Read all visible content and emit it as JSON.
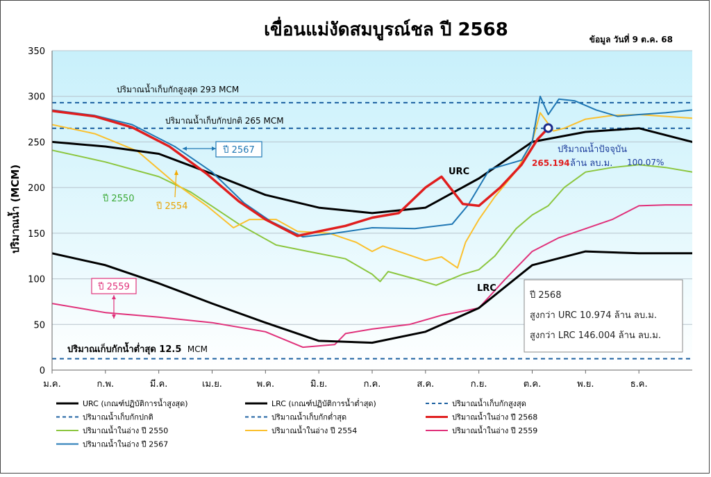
{
  "chart_data": {
    "type": "line",
    "title": "เขื่อนแม่งัดสมบูรณ์ชล ปี 2568",
    "subtitle": "ข้อมูล วันที่  9 ต.ค. 68",
    "ylabel": "ปริมาณน้ำ (MCM)",
    "xlabel": "",
    "ylim": [
      0,
      350
    ],
    "yticks": [
      0,
      50,
      100,
      150,
      200,
      250,
      300,
      350
    ],
    "xlim": [
      0,
      12
    ],
    "months": [
      "ม.ค.",
      "ก.พ.",
      "มี.ค.",
      "เม.ย.",
      "พ.ค.",
      "มิ.ย.",
      "ก.ค.",
      "ส.ค.",
      "ก.ย.",
      "ต.ค.",
      "พ.ย.",
      "ธ.ค."
    ],
    "grid": true,
    "legend_position": "bottom",
    "series": [
      {
        "key": "urc",
        "name": "URC (เกณฑ์ปฏิบัติการน้ำสูงสุด)",
        "color": "#000000",
        "width": 3,
        "dash": "",
        "points": [
          [
            0,
            250
          ],
          [
            1,
            245
          ],
          [
            2,
            237
          ],
          [
            3,
            215
          ],
          [
            4,
            192
          ],
          [
            5,
            178
          ],
          [
            6,
            172
          ],
          [
            7,
            178
          ],
          [
            8,
            210
          ],
          [
            9,
            250
          ],
          [
            10,
            261
          ],
          [
            11,
            265
          ],
          [
            12,
            250
          ]
        ]
      },
      {
        "key": "lrc",
        "name": "LRC (เกณฑ์ปฏิบัติการน้ำต่ำสุด)",
        "color": "#000000",
        "width": 3,
        "dash": "",
        "points": [
          [
            0,
            128
          ],
          [
            1,
            115
          ],
          [
            2,
            95
          ],
          [
            3,
            73
          ],
          [
            4,
            52
          ],
          [
            5,
            32
          ],
          [
            6,
            30
          ],
          [
            7,
            42
          ],
          [
            8,
            68
          ],
          [
            9,
            115
          ],
          [
            10,
            130
          ],
          [
            11,
            128
          ],
          [
            12,
            128
          ]
        ]
      },
      {
        "key": "y2550",
        "name": "ปริมาณน้ำในอ่าง  ปี 2550",
        "color": "#8cc63f",
        "width": 2,
        "dash": "",
        "points": [
          [
            0,
            241
          ],
          [
            1,
            228
          ],
          [
            2,
            212
          ],
          [
            2.6,
            195
          ],
          [
            3.5,
            160
          ],
          [
            4.2,
            137
          ],
          [
            4.8,
            130
          ],
          [
            5.5,
            122
          ],
          [
            6,
            105
          ],
          [
            6.15,
            97
          ],
          [
            6.3,
            108
          ],
          [
            6.8,
            100
          ],
          [
            7.2,
            93
          ],
          [
            7.7,
            105
          ],
          [
            8,
            110
          ],
          [
            8.3,
            125
          ],
          [
            8.7,
            155
          ],
          [
            9,
            170
          ],
          [
            9.3,
            180
          ],
          [
            9.6,
            200
          ],
          [
            10,
            217
          ],
          [
            10.5,
            222
          ],
          [
            11,
            225
          ],
          [
            11.5,
            222
          ],
          [
            12,
            217
          ]
        ]
      },
      {
        "key": "y2554",
        "name": "ปริมาณน้ำในอ่าง  ปี 2554",
        "color": "#fbc02d",
        "width": 2,
        "dash": "",
        "points": [
          [
            0,
            269
          ],
          [
            0.8,
            259
          ],
          [
            1.6,
            240
          ],
          [
            2.3,
            205
          ],
          [
            2.9,
            180
          ],
          [
            3.4,
            156
          ],
          [
            3.7,
            165
          ],
          [
            4.2,
            165
          ],
          [
            4.6,
            152
          ],
          [
            5.2,
            150
          ],
          [
            5.7,
            140
          ],
          [
            6,
            130
          ],
          [
            6.2,
            136
          ],
          [
            6.6,
            128
          ],
          [
            7,
            120
          ],
          [
            7.3,
            124
          ],
          [
            7.6,
            112
          ],
          [
            7.75,
            140
          ],
          [
            8,
            165
          ],
          [
            8.3,
            190
          ],
          [
            8.7,
            218
          ],
          [
            9,
            250
          ],
          [
            9.15,
            282
          ],
          [
            9.4,
            262
          ],
          [
            9.6,
            265
          ],
          [
            10,
            275
          ],
          [
            10.5,
            279
          ],
          [
            11,
            280
          ],
          [
            11.5,
            278
          ],
          [
            12,
            276
          ]
        ]
      },
      {
        "key": "y2559",
        "name": "ปริมาณน้ำในอ่าง  ปี 2559",
        "color": "#e0317a",
        "width": 2,
        "dash": "",
        "points": [
          [
            0,
            73
          ],
          [
            1,
            63
          ],
          [
            2,
            58
          ],
          [
            3,
            52
          ],
          [
            4,
            42
          ],
          [
            4.7,
            25
          ],
          [
            5.3,
            28
          ],
          [
            5.5,
            40
          ],
          [
            6,
            45
          ],
          [
            6.7,
            50
          ],
          [
            7.3,
            60
          ],
          [
            8,
            68
          ],
          [
            8.5,
            100
          ],
          [
            9,
            130
          ],
          [
            9.5,
            145
          ],
          [
            10,
            155
          ],
          [
            10.5,
            165
          ],
          [
            11,
            180
          ],
          [
            11.5,
            181
          ],
          [
            12,
            181
          ]
        ]
      },
      {
        "key": "y2567",
        "name": "ปริมาณน้ำในอ่าง  ปี 2567",
        "color": "#1f77b4",
        "width": 2,
        "dash": "",
        "points": [
          [
            0,
            285
          ],
          [
            0.8,
            279
          ],
          [
            1.5,
            269
          ],
          [
            2.3,
            245
          ],
          [
            3,
            217
          ],
          [
            3.6,
            183
          ],
          [
            4.1,
            163
          ],
          [
            4.7,
            146
          ],
          [
            5.3,
            150
          ],
          [
            6,
            156
          ],
          [
            6.8,
            155
          ],
          [
            7.5,
            160
          ],
          [
            7.8,
            181
          ],
          [
            8.2,
            220
          ],
          [
            8.5,
            225
          ],
          [
            8.8,
            230
          ],
          [
            9,
            250
          ],
          [
            9.15,
            300
          ],
          [
            9.3,
            280
          ],
          [
            9.5,
            297
          ],
          [
            9.8,
            295
          ],
          [
            10.2,
            285
          ],
          [
            10.6,
            278
          ],
          [
            11,
            280
          ],
          [
            11.5,
            282
          ],
          [
            12,
            285
          ]
        ]
      },
      {
        "key": "y2568",
        "name": "ปริมาณน้ำในอ่าง  ปี 2568",
        "color": "#e01e1e",
        "width": 3.5,
        "dash": "",
        "points": [
          [
            0,
            284
          ],
          [
            0.8,
            278
          ],
          [
            1.5,
            266
          ],
          [
            2.2,
            245
          ],
          [
            2.9,
            215
          ],
          [
            3.5,
            185
          ],
          [
            4,
            165
          ],
          [
            4.6,
            147
          ],
          [
            5,
            152
          ],
          [
            5.5,
            158
          ],
          [
            6,
            167
          ],
          [
            6.5,
            172
          ],
          [
            7,
            200
          ],
          [
            7.3,
            212
          ],
          [
            7.7,
            182
          ],
          [
            8,
            180
          ],
          [
            8.4,
            200
          ],
          [
            8.8,
            225
          ],
          [
            9.1,
            253
          ],
          [
            9.3,
            265.194
          ]
        ]
      },
      {
        "key": "max",
        "name": "ปริมาณน้ำเก็บกักสูงสุด",
        "color": "#1a5fa0",
        "width": 2,
        "dash": "6,5",
        "points": [
          [
            0,
            293
          ],
          [
            12,
            293
          ]
        ]
      },
      {
        "key": "normal",
        "name": "ปริมาณน้ำเก็บกักปกติ",
        "color": "#1a5fa0",
        "width": 2,
        "dash": "6,5",
        "points": [
          [
            0,
            265
          ],
          [
            12,
            265
          ]
        ]
      },
      {
        "key": "min",
        "name": "ปริมาณน้ำเก็บกักต่ำสุด",
        "color": "#1a5fa0",
        "width": 2,
        "dash": "6,5",
        "points": [
          [
            0,
            12.5
          ],
          [
            12,
            12.5
          ]
        ]
      }
    ],
    "legend_order": [
      "urc",
      "lrc",
      "max",
      "normal",
      "min",
      "y2568",
      "y2550",
      "y2554",
      "y2559",
      "y2567"
    ],
    "current_point": {
      "x": 9.3,
      "y": 265.194,
      "label": "ปริมาณน้ำปัจจุบัน",
      "unit": "ล้าน ลบ.ม.",
      "value_text": "265.194",
      "percent": "100.07%"
    },
    "annotations": {
      "max_label": "ปริมาณน้ำเก็บกักสูงสุด 293 MCM",
      "normal_label": "ปริมาณน้ำเก็บกักปกติ 265  MCM",
      "min_label_main": "ปริมาณเก็บกักน้ำต่ำสุด 12.5",
      "min_label_unit": "MCM",
      "urc_label": "URC",
      "lrc_label": "LRC",
      "label_2567": "ปี 2567",
      "label_2550": "ปี 2550",
      "label_2554": "ปี 2554",
      "label_2559": "ปี 2559"
    },
    "info_box": {
      "line1": "ปี 2568",
      "line2": "สูงกว่า URC 10.974 ล้าน ลบ.ม.",
      "line3": "สูงกว่า LRC 146.004 ล้าน ลบ.ม."
    },
    "colors": {
      "plot_top": "#c8f0fb",
      "plot_bottom": "#ffffff",
      "grid": "#b7c3cc",
      "info_box_border": "#888888"
    }
  }
}
